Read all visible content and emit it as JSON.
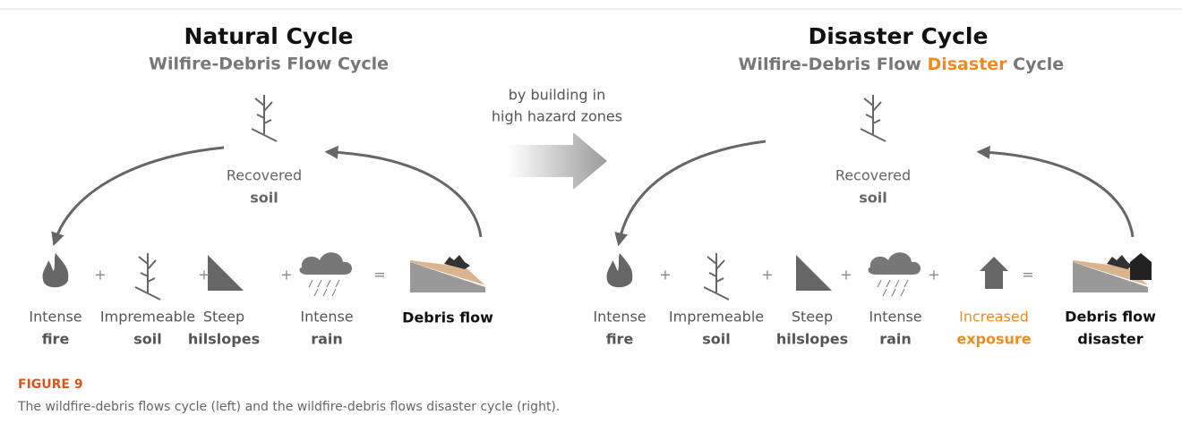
{
  "left": {
    "title": "Natural Cycle",
    "subtitle": "Wilfire-Debris Flow Cycle",
    "center": [
      "Recovered",
      "soil"
    ],
    "items": [
      [
        "Intense",
        "fire"
      ],
      [
        "Impremeable",
        "soil"
      ],
      [
        "Steep",
        "hilslopes"
      ],
      [
        "Intense",
        "rain"
      ],
      [
        "Debris flow"
      ]
    ],
    "operators": [
      "+",
      "+",
      "+",
      "="
    ]
  },
  "transition": [
    "by building in",
    "high hazard zones"
  ],
  "right": {
    "title": "Disaster Cycle",
    "subtitle": [
      "Wilfire-Debris Flow ",
      "Disaster",
      " Cycle"
    ],
    "center": [
      "Recovered",
      "soil"
    ],
    "items": [
      [
        "Intense",
        "fire"
      ],
      [
        "Impremeable",
        "soil"
      ],
      [
        "Steep",
        "hilslopes"
      ],
      [
        "Intense",
        "rain"
      ],
      [
        "Increased",
        "exposure"
      ],
      [
        "Debris flow",
        "disaster"
      ]
    ],
    "operators": [
      "+",
      "+",
      "+",
      "+",
      "="
    ]
  },
  "figure": {
    "label": "FIGURE 9",
    "caption": "The wildfire-debris flows cycle (left) and the wildfire-debris flows disaster cycle (right)."
  }
}
